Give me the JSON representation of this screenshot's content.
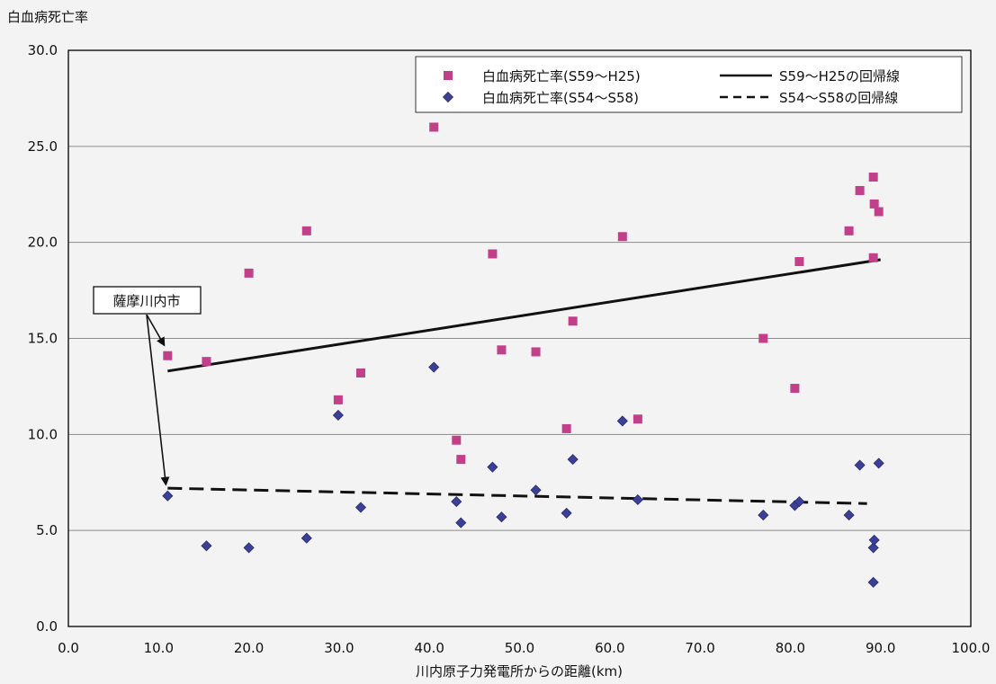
{
  "chart_data": {
    "type": "scatter",
    "ylabel": "白血病死亡率",
    "xlabel": "川内原子力発電所からの距離(km)",
    "xlim": [
      0,
      100
    ],
    "ylim": [
      0,
      30
    ],
    "x_ticks": [
      "0.0",
      "10.0",
      "20.0",
      "30.0",
      "40.0",
      "50.0",
      "60.0",
      "70.0",
      "80.0",
      "90.0",
      "100.0"
    ],
    "y_ticks": [
      "0.0",
      "5.0",
      "10.0",
      "15.0",
      "20.0",
      "25.0",
      "30.0"
    ],
    "grid": "horizontal",
    "legend_position": "top-right",
    "series": [
      {
        "name": "白血病死亡率(S59〜H25)",
        "marker": "square",
        "color": "#c2408a",
        "points": [
          [
            11.0,
            14.1
          ],
          [
            15.3,
            13.8
          ],
          [
            20.0,
            18.4
          ],
          [
            26.4,
            20.6
          ],
          [
            29.9,
            11.8
          ],
          [
            32.4,
            13.2
          ],
          [
            40.5,
            26.0
          ],
          [
            43.0,
            9.7
          ],
          [
            43.5,
            8.7
          ],
          [
            47.0,
            19.4
          ],
          [
            48.0,
            14.4
          ],
          [
            51.8,
            14.3
          ],
          [
            55.2,
            10.3
          ],
          [
            55.9,
            15.9
          ],
          [
            61.4,
            20.3
          ],
          [
            63.1,
            10.8
          ],
          [
            77.0,
            15.0
          ],
          [
            80.5,
            12.4
          ],
          [
            81.0,
            19.0
          ],
          [
            86.5,
            20.6
          ],
          [
            87.7,
            22.7
          ],
          [
            89.2,
            23.4
          ],
          [
            89.3,
            22.0
          ],
          [
            89.2,
            19.2
          ],
          [
            89.8,
            21.6
          ]
        ]
      },
      {
        "name": "白血病死亡率(S54〜S58)",
        "marker": "diamond",
        "color": "#3b3f96",
        "points": [
          [
            11.0,
            6.8
          ],
          [
            15.3,
            4.2
          ],
          [
            20.0,
            4.1
          ],
          [
            26.4,
            4.6
          ],
          [
            29.9,
            11.0
          ],
          [
            32.4,
            6.2
          ],
          [
            40.5,
            13.5
          ],
          [
            43.0,
            6.5
          ],
          [
            43.5,
            5.4
          ],
          [
            47.0,
            8.3
          ],
          [
            48.0,
            5.7
          ],
          [
            51.8,
            7.1
          ],
          [
            55.2,
            5.9
          ],
          [
            55.9,
            8.7
          ],
          [
            61.4,
            10.7
          ],
          [
            63.1,
            6.6
          ],
          [
            77.0,
            5.8
          ],
          [
            80.5,
            6.3
          ],
          [
            81.0,
            6.5
          ],
          [
            86.5,
            5.8
          ],
          [
            87.7,
            8.4
          ],
          [
            89.2,
            4.1
          ],
          [
            89.3,
            4.5
          ],
          [
            89.2,
            2.3
          ],
          [
            89.8,
            8.5
          ]
        ]
      }
    ],
    "regression_lines": [
      {
        "name": "S59〜H25の回帰線",
        "style": "solid",
        "color": "#111111",
        "from": [
          11.0,
          13.3
        ],
        "to": [
          90.0,
          19.1
        ]
      },
      {
        "name": "S54〜S58の回帰線",
        "style": "dashed",
        "color": "#111111",
        "from": [
          11.0,
          7.2
        ],
        "to": [
          88.5,
          6.4
        ]
      }
    ],
    "annotation": {
      "text": "薩摩川内市",
      "targets": [
        [
          11.0,
          14.1
        ],
        [
          11.0,
          6.8
        ]
      ]
    }
  }
}
